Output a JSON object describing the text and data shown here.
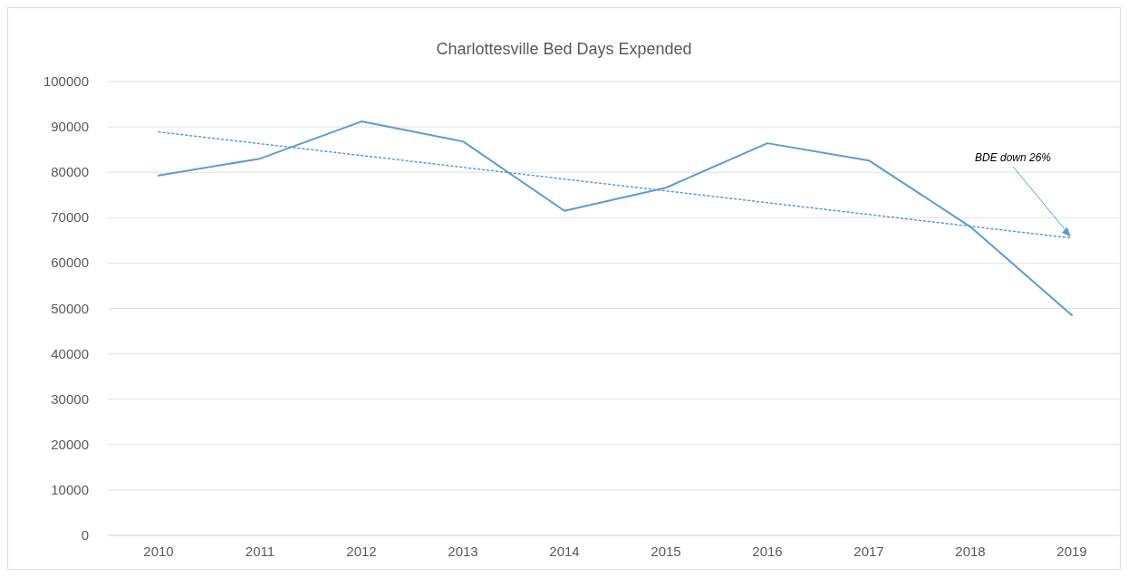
{
  "chart_data": {
    "type": "line",
    "title": "Charlottesville Bed Days Expended",
    "categories": [
      "2010",
      "2011",
      "2012",
      "2013",
      "2014",
      "2015",
      "2016",
      "2017",
      "2018",
      "2019"
    ],
    "series": [
      {
        "color": "#5b9bd5",
        "values": [
          79300,
          83000,
          91200,
          86800,
          71500,
          76600,
          86400,
          82600,
          68000,
          48500
        ]
      },
      {
        "type": "line",
        "color": "#5b9bd5",
        "line_style": "dotted",
        "values": [
          88900,
          86300,
          83700,
          81100,
          78500,
          75900,
          73300,
          70700,
          68100,
          65500
        ]
      }
    ],
    "ylim": [
      0,
      100000
    ],
    "yticks": [
      0,
      10000,
      20000,
      30000,
      40000,
      50000,
      60000,
      70000,
      80000,
      90000,
      100000
    ],
    "grid": "y",
    "annotations": [
      {
        "text": "BDE down 26%",
        "x": "2019",
        "y": 65500
      }
    ]
  }
}
